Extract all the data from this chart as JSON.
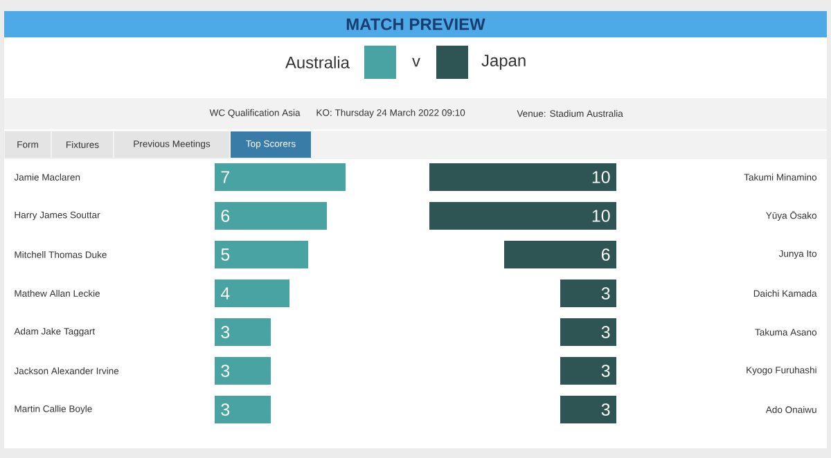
{
  "chart_data": [
    {
      "type": "bar",
      "title": "MATCH PREVIEW",
      "orientation": "horizontal",
      "legend": "top",
      "data_labels": true,
      "categories": [
        "Jamie Maclaren",
        "Harry James Souttar",
        "Mitchell Thomas Duke",
        "Mathew Allan Leckie",
        "Adam Jake Taggart",
        "Jackson Alexander Irvine",
        "Martin Callie Boyle"
      ],
      "series": [
        {
          "name": "Australia",
          "color": "#4aa3a3",
          "values": [
            7,
            6,
            5,
            4,
            3,
            3,
            3
          ]
        }
      ],
      "annotations": [
        "v",
        "WC Qualification Asia",
        "KO: Thursday 24 March 2022 09:10",
        "Venue: Stadium Australia",
        "Form",
        "Fixtures",
        "Previous Meetings",
        "Top Scorers"
      ]
    },
    {
      "type": "bar",
      "orientation": "horizontal",
      "legend": "top",
      "data_labels": true,
      "categories": [
        "Takumi Minamino",
        "Yūya Ōsako",
        "Junya Ito",
        "Daichi Kamada",
        "Takuma Asano",
        "Kyogo Furuhashi",
        "Ado Onaiwu"
      ],
      "series": [
        {
          "name": "Japan",
          "color": "#2e5553",
          "values": [
            10,
            10,
            6,
            3,
            3,
            3,
            3
          ]
        }
      ]
    }
  ]
}
